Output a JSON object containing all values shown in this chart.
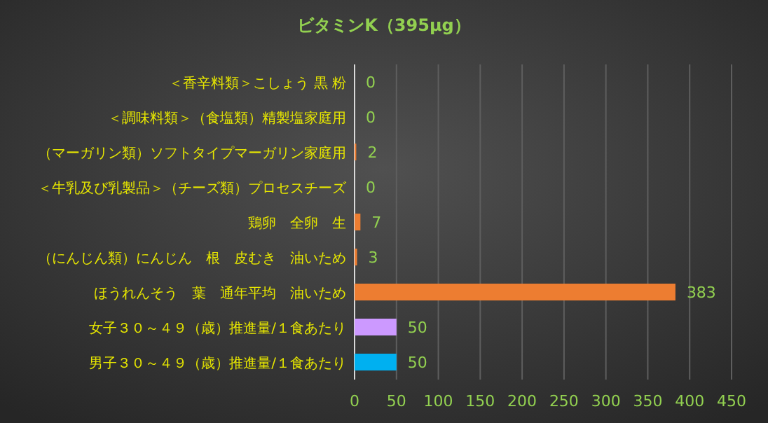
{
  "chart_data": {
    "type": "bar",
    "orientation": "horizontal",
    "title": "ビタミンK（395μg）",
    "categories": [
      "＜香辛料類＞こしょう 黒 粉",
      "＜調味料類＞（食塩類）精製塩家庭用",
      "（マーガリン類）ソフトタイプマーガリン家庭用",
      "＜牛乳及び乳製品＞（チーズ類）プロセスチーズ",
      "鶏卵　全卵　生",
      "（にんじん類）にんじん　根　皮むき　油いため",
      "ほうれんそう　葉　通年平均　油いため",
      "女子３０～４９（歳）推進量/１食あたり",
      "男子３０～４９（歳）推進量/１食あたり"
    ],
    "values": [
      0,
      0,
      2,
      0,
      7,
      3,
      383,
      50,
      50
    ],
    "colors": [
      "#ed7d31",
      "#ed7d31",
      "#ed7d31",
      "#ed7d31",
      "#ed7d31",
      "#ed7d31",
      "#ed7d31",
      "#cc99ff",
      "#00b0f0"
    ],
    "xlim": [
      0,
      450
    ],
    "xticks": [
      0,
      50,
      100,
      150,
      200,
      250,
      300,
      350,
      400,
      450
    ],
    "grid": "x",
    "data_labels": true
  }
}
